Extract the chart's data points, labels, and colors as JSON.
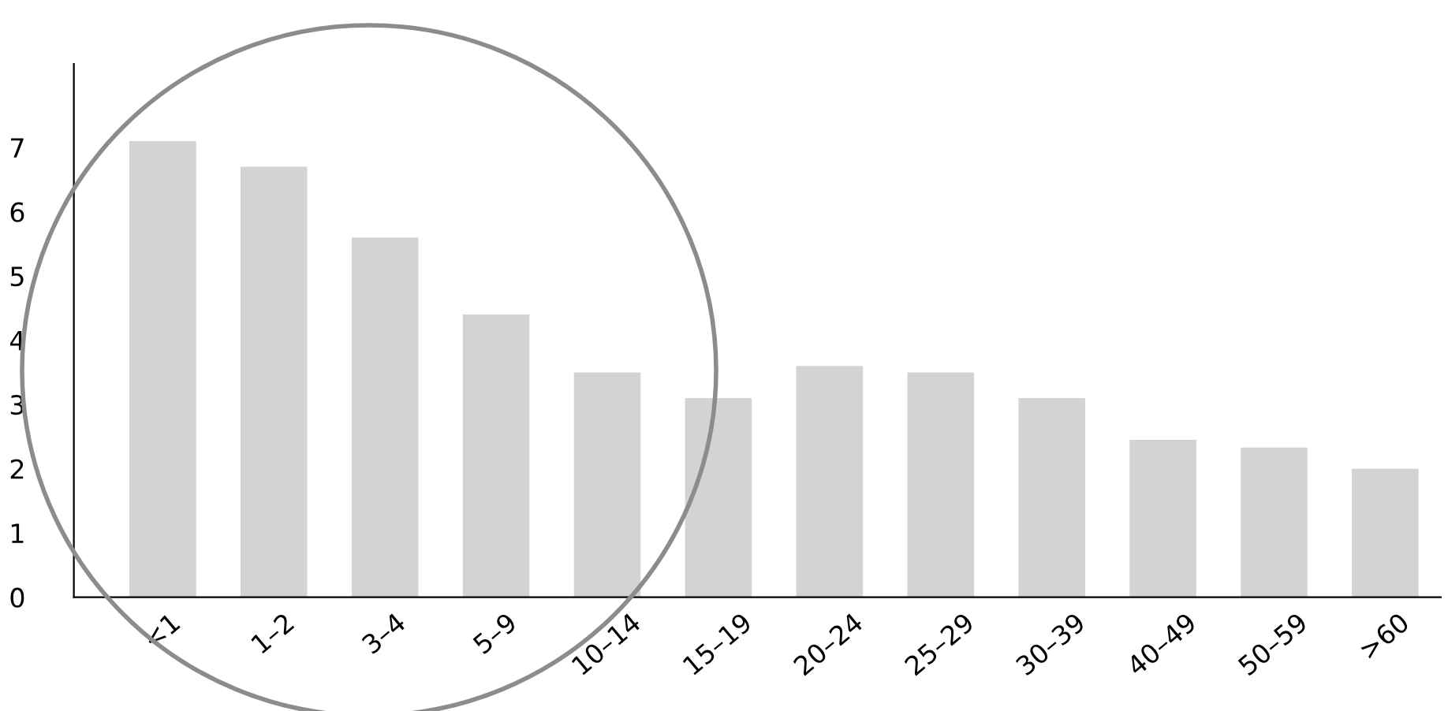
{
  "chart_data": {
    "type": "bar",
    "categories": [
      "<1",
      "1–2",
      "3–4",
      "5–9",
      "10–14",
      "15–19",
      "20–24",
      "25–29",
      "30–39",
      "40–49",
      "50–59",
      ">60"
    ],
    "values": [
      7.1,
      6.7,
      5.6,
      4.4,
      3.5,
      3.1,
      3.6,
      3.5,
      3.1,
      2.45,
      2.33,
      2.0
    ],
    "color": "#d3d3d3",
    "ylim": [
      0,
      8.3
    ],
    "yticks": [
      0,
      1,
      2,
      3,
      4,
      5,
      6,
      7
    ],
    "grid": false
  }
}
